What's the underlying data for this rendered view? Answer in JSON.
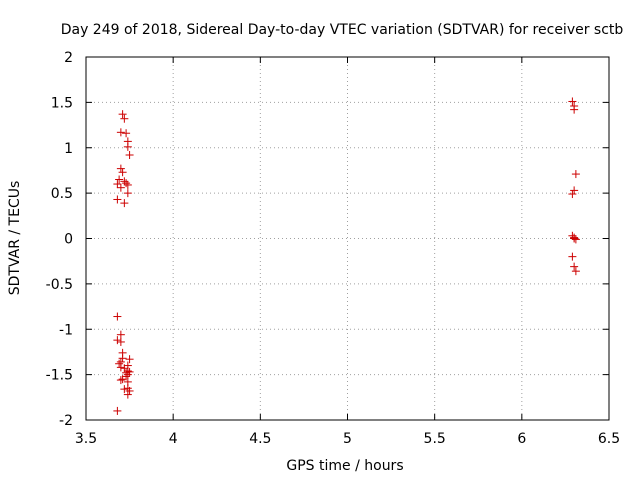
{
  "chart_data": {
    "type": "scatter",
    "title": "Day 249 of 2018, Sidereal Day-to-day VTEC variation (SDTVAR) for receiver sctb",
    "xlabel": "GPS time / hours",
    "ylabel": "SDTVAR / TECUs",
    "xlim": [
      3.5,
      6.5
    ],
    "ylim": [
      -2,
      2
    ],
    "xticks": [
      3.5,
      4,
      4.5,
      5,
      5.5,
      6,
      6.5
    ],
    "yticks": [
      -2,
      -1.5,
      -1,
      -0.5,
      0,
      0.5,
      1,
      1.5,
      2
    ],
    "xtick_labels": [
      "3.5",
      "4",
      "4.5",
      "5",
      "5.5",
      "6",
      "6.5"
    ],
    "ytick_labels": [
      "-2",
      "-1.5",
      "-1",
      "-0.5",
      "0",
      "0.5",
      "1",
      "1.5",
      "2"
    ],
    "grid": true,
    "marker": "+",
    "marker_color": "#cc0000",
    "series": [
      {
        "name": "SDTVAR",
        "points": [
          [
            3.71,
            1.37
          ],
          [
            3.72,
            1.32
          ],
          [
            3.7,
            1.17
          ],
          [
            3.73,
            1.16
          ],
          [
            3.74,
            1.07
          ],
          [
            3.74,
            1.01
          ],
          [
            3.75,
            0.92
          ],
          [
            3.7,
            0.77
          ],
          [
            3.71,
            0.73
          ],
          [
            3.69,
            0.65
          ],
          [
            3.72,
            0.63
          ],
          [
            3.68,
            0.6
          ],
          [
            3.73,
            0.61
          ],
          [
            3.74,
            0.59
          ],
          [
            3.7,
            0.56
          ],
          [
            3.74,
            0.5
          ],
          [
            3.68,
            0.43
          ],
          [
            3.72,
            0.39
          ],
          [
            3.68,
            -0.86
          ],
          [
            3.7,
            -1.06
          ],
          [
            3.68,
            -1.12
          ],
          [
            3.7,
            -1.14
          ],
          [
            3.71,
            -1.26
          ],
          [
            3.71,
            -1.32
          ],
          [
            3.7,
            -1.36
          ],
          [
            3.69,
            -1.38
          ],
          [
            3.7,
            -1.42
          ],
          [
            3.72,
            -1.43
          ],
          [
            3.74,
            -1.4
          ],
          [
            3.75,
            -1.33
          ],
          [
            3.73,
            -1.48
          ],
          [
            3.74,
            -1.46
          ],
          [
            3.75,
            -1.47
          ],
          [
            3.74,
            -1.5
          ],
          [
            3.73,
            -1.52
          ],
          [
            3.7,
            -1.56
          ],
          [
            3.71,
            -1.55
          ],
          [
            3.74,
            -1.58
          ],
          [
            3.72,
            -1.66
          ],
          [
            3.74,
            -1.65
          ],
          [
            3.75,
            -1.68
          ],
          [
            3.74,
            -1.72
          ],
          [
            3.68,
            -1.9
          ],
          [
            6.29,
            1.51
          ],
          [
            6.3,
            1.46
          ],
          [
            6.3,
            1.42
          ],
          [
            6.31,
            0.71
          ],
          [
            6.3,
            0.53
          ],
          [
            6.29,
            0.49
          ],
          [
            6.29,
            0.03
          ],
          [
            6.3,
            0.01
          ],
          [
            6.3,
            0.0
          ],
          [
            6.31,
            -0.01
          ],
          [
            6.29,
            -0.2
          ],
          [
            6.3,
            -0.31
          ],
          [
            6.31,
            -0.36
          ]
        ]
      }
    ]
  }
}
